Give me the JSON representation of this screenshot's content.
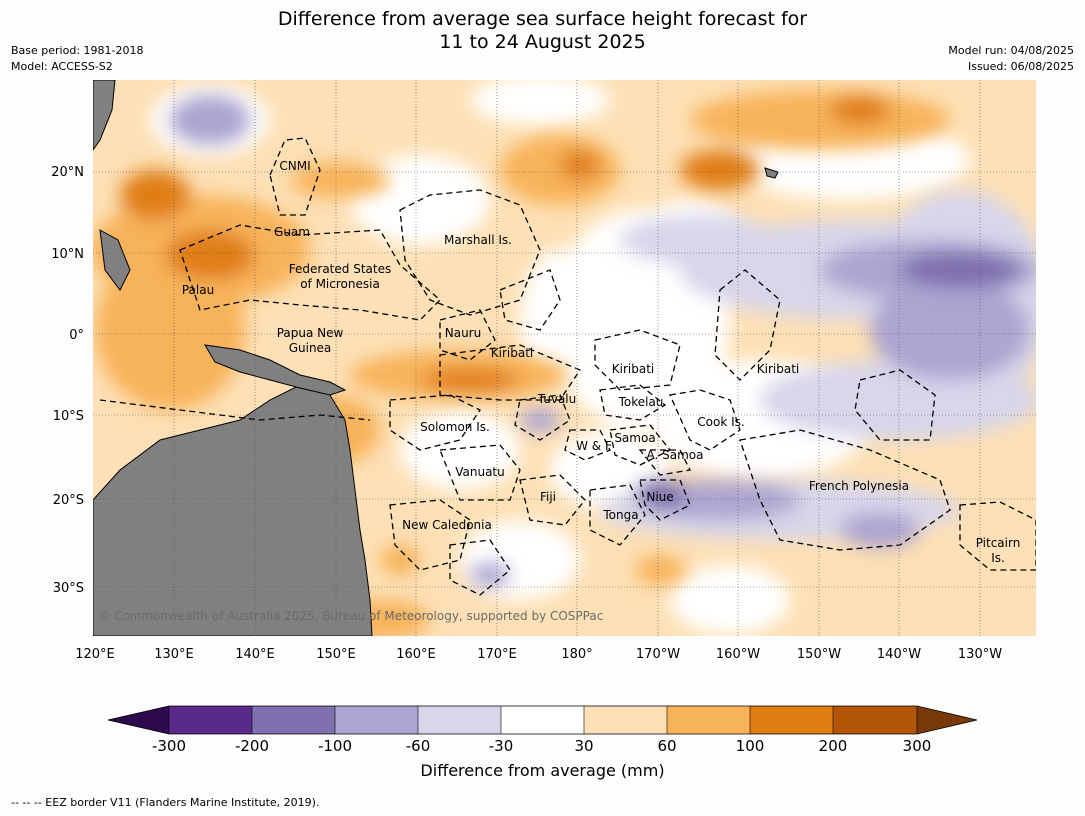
{
  "title": {
    "line1": "Difference from average sea surface height forecast for",
    "line2": "11 to 24 August 2025"
  },
  "meta_left": {
    "base_period": "Base period: 1981-2018",
    "model": "Model: ACCESS-S2"
  },
  "meta_right": {
    "model_run": "Model run: 04/08/2025",
    "issued": "Issued: 06/08/2025"
  },
  "axes": {
    "lon_ticks": [
      "120°E",
      "130°E",
      "140°E",
      "150°E",
      "160°E",
      "170°E",
      "180°",
      "170°W",
      "160°W",
      "150°W",
      "140°W",
      "130°W"
    ],
    "lat_ticks": [
      "20°N",
      "10°N",
      "0°",
      "10°S",
      "20°S",
      "30°S"
    ]
  },
  "map_labels": [
    "CNMI",
    "Guam",
    "Marshall Is.",
    "Federated States",
    "of Micronesia",
    "Palau",
    "Papua New",
    "Guinea",
    "Nauru",
    "Kiribati",
    "Kiribati",
    "Kiribati",
    "Tuvalu",
    "Tokelau",
    "Solomon Is.",
    "Cook Is.",
    "W & F",
    "Samoa",
    "A. Samoa",
    "Vanuatu",
    "Fiji",
    "Niue",
    "French Polynesia",
    "Tonga",
    "New Caledonia",
    "Pitcairn",
    "Is."
  ],
  "copyright": "© Commonwealth of Australia 2025, Bureau of Meteorology, supported by COSPPac",
  "colorbar": {
    "ticks": [
      "-300",
      "-200",
      "-100",
      "-60",
      "-30",
      "30",
      "60",
      "100",
      "200",
      "300"
    ],
    "colors": [
      "#2d0a4e",
      "#5a2a8a",
      "#7e6fae",
      "#aca5d0",
      "#d7d6ea",
      "#ffffff",
      "#fde0b5",
      "#f7b35a",
      "#e07e12",
      "#b3560a",
      "#7a3a08"
    ],
    "label": "Difference from average (mm)"
  },
  "footnote": "--  --  -- EEZ border V11 (Flanders Marine Institute, 2019)."
}
